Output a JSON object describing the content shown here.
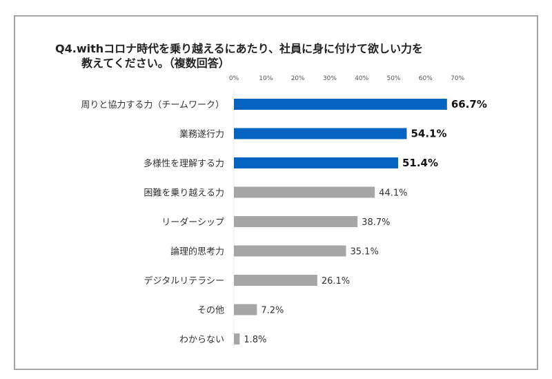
{
  "chart_data": {
    "type": "bar",
    "orientation": "horizontal",
    "title": [
      "Q4.withコロナ時代を乗り越えるにあたり、社員に身に付けて欲しい力を",
      "教えてください。（複数回答）"
    ],
    "categories": [
      "周りと協力する力（チームワーク）",
      "業務遂行力",
      "多様性を理解する力",
      "困難を乗り越える力",
      "リーダーシップ",
      "論理的思考力",
      "デジタルリテラシー",
      "その他",
      "わからない"
    ],
    "values": [
      66.7,
      54.1,
      51.4,
      44.1,
      38.7,
      35.1,
      26.1,
      7.2,
      1.8
    ],
    "value_labels": [
      "66.7%",
      "54.1%",
      "51.4%",
      "44.1%",
      "38.7%",
      "35.1%",
      "26.1%",
      "7.2%",
      "1.8%"
    ],
    "highlighted": [
      true,
      true,
      true,
      false,
      false,
      false,
      false,
      false,
      false
    ],
    "xlim": [
      0,
      70
    ],
    "x_ticks": [
      "0%",
      "10%",
      "20%",
      "30%",
      "40%",
      "50%",
      "60%",
      "70%"
    ],
    "tick_values": [
      0,
      10,
      20,
      30,
      40,
      50,
      60,
      70
    ],
    "axis_position": "top",
    "grid": false,
    "colors": {
      "highlight": "#0563C1",
      "default": "#A6A6A6",
      "frame": "#888888"
    }
  }
}
